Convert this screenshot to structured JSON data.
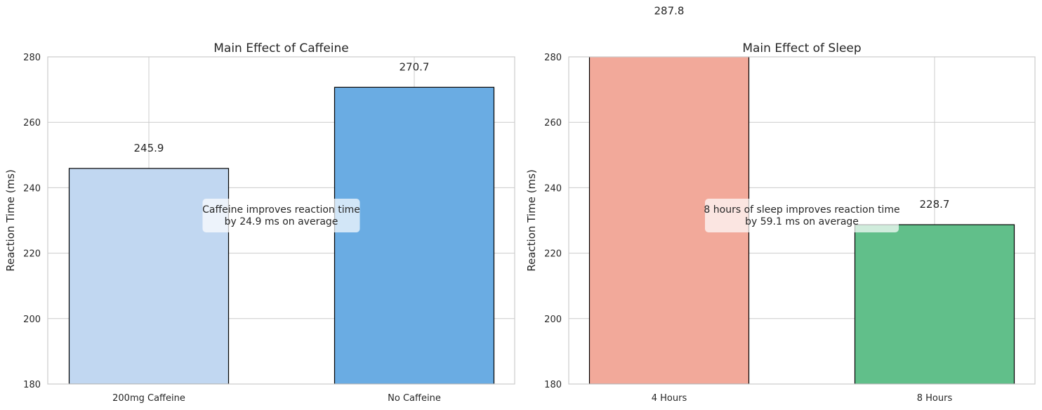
{
  "chart_data": [
    {
      "type": "bar",
      "title": "Main Effect of Caffeine",
      "xlabel": "",
      "ylabel": "Reaction Time (ms)",
      "ylim": [
        180,
        280
      ],
      "yticks": [
        180,
        200,
        220,
        240,
        260,
        280
      ],
      "grid": true,
      "categories": [
        "200mg Caffeine",
        "No Caffeine"
      ],
      "values": [
        245.9,
        270.7
      ],
      "value_labels": [
        "245.9",
        "270.7"
      ],
      "colors": [
        "#c1d7f1",
        "#6aace3"
      ],
      "annotation": [
        "Caffeine improves reaction time",
        "by 24.9 ms on average"
      ]
    },
    {
      "type": "bar",
      "title": "Main Effect of Sleep",
      "xlabel": "",
      "ylabel": "Reaction Time (ms)",
      "ylim": [
        180,
        280
      ],
      "yticks": [
        180,
        200,
        220,
        240,
        260,
        280
      ],
      "grid": true,
      "categories": [
        "4 Hours",
        "8 Hours"
      ],
      "values": [
        287.8,
        228.7
      ],
      "value_labels": [
        "287.8",
        "228.7"
      ],
      "colors": [
        "#f2a99a",
        "#61bf8a"
      ],
      "annotation": [
        "8 hours of sleep improves reaction time",
        "by 59.1 ms on average"
      ]
    }
  ]
}
